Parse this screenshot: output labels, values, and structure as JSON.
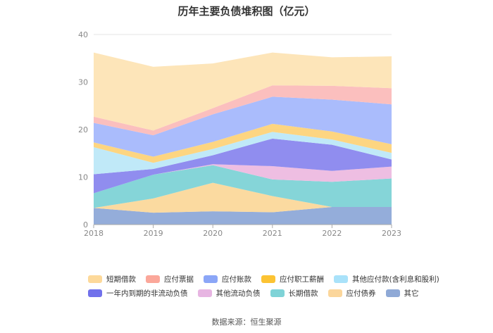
{
  "chart_data": {
    "type": "area",
    "stacked": true,
    "title": "历年主要负债堆积图（亿元）",
    "x": [
      "2018",
      "2019",
      "2020",
      "2021",
      "2022",
      "2023"
    ],
    "ylim": [
      0,
      40
    ],
    "yticks": [
      0,
      10,
      20,
      30,
      40
    ],
    "grid": true,
    "legend_position": "bottom",
    "series": [
      {
        "name": "其它",
        "color": "#8ea9d8",
        "values": [
          3.5,
          2.5,
          2.8,
          2.6,
          3.7,
          3.7
        ]
      },
      {
        "name": "应付债券",
        "color": "#fbd89b",
        "values": [
          0,
          3.0,
          6.0,
          3.4,
          0,
          0
        ]
      },
      {
        "name": "长期借款",
        "color": "#7ed3d6",
        "values": [
          3.1,
          5.0,
          3.7,
          3.5,
          5.3,
          6.0
        ]
      },
      {
        "name": "其他流动负债",
        "color": "#edbbe0",
        "values": [
          0,
          0,
          0.2,
          2.8,
          2.3,
          2.5
        ]
      },
      {
        "name": "一年内到期的非流动负债",
        "color": "#8a87ee",
        "values": [
          4.0,
          1.2,
          1.9,
          5.8,
          5.5,
          1.5
        ]
      },
      {
        "name": "其他应付款(含利息和股利)",
        "color": "#bde8f8",
        "values": [
          5.7,
          1.3,
          1.3,
          1.4,
          1.1,
          1.4
        ]
      },
      {
        "name": "应付职工薪酬",
        "color": "#fdd37a",
        "values": [
          1.0,
          1.3,
          1.5,
          1.7,
          1.7,
          1.8
        ]
      },
      {
        "name": "应付账款",
        "color": "#a5b8fc",
        "values": [
          4.1,
          4.5,
          5.8,
          5.7,
          6.7,
          8.4
        ]
      },
      {
        "name": "应付票据",
        "color": "#fbbcba",
        "values": [
          1.3,
          1.0,
          1.3,
          2.4,
          2.9,
          3.4
        ]
      },
      {
        "name": "短期借款",
        "color": "#fde4b5",
        "values": [
          13.5,
          13.4,
          9.4,
          6.9,
          6.0,
          6.7
        ]
      }
    ],
    "legend": [
      {
        "name": "短期借款",
        "color": "#fdd99a"
      },
      {
        "name": "应付票据",
        "color": "#fba79a"
      },
      {
        "name": "应付账款",
        "color": "#8ba6f7"
      },
      {
        "name": "应付职工薪酬",
        "color": "#fcc333"
      },
      {
        "name": "其他应付款(含利息和股利)",
        "color": "#a9e2fa"
      },
      {
        "name": "一年内到期的非流动负债",
        "color": "#7171eb"
      },
      {
        "name": "其他流动负债",
        "color": "#e7b5e2"
      },
      {
        "name": "长期借款",
        "color": "#7fd3d7"
      },
      {
        "name": "应付债券",
        "color": "#fbd69b"
      },
      {
        "name": "其它",
        "color": "#8fa9d6"
      }
    ],
    "source": "数据来源：恒生聚源"
  }
}
